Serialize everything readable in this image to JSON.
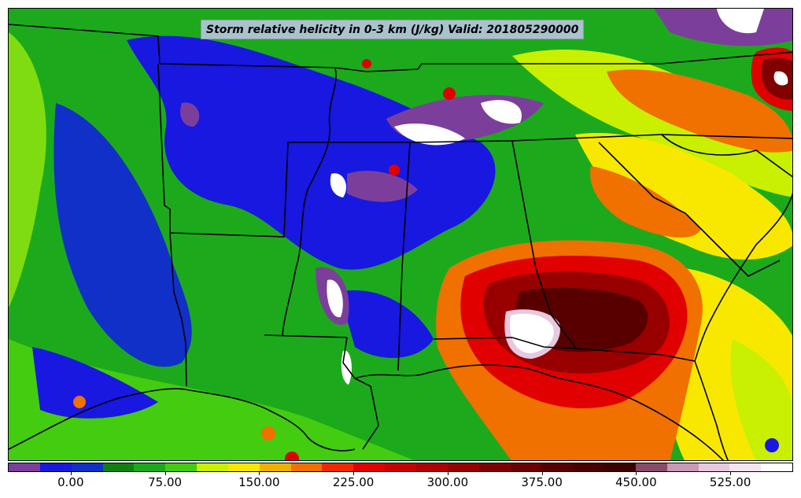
{
  "title": "Storm relative helicity in 0-3 km (J/kg) Valid: 201805290000",
  "colorbar": {
    "colors": [
      "#7b3f9b",
      "#1818e0",
      "#1030c8",
      "#108010",
      "#1caa1c",
      "#44cc10",
      "#c8f000",
      "#f8e800",
      "#f0b000",
      "#f07000",
      "#f02800",
      "#e00000",
      "#c80000",
      "#b00000",
      "#980000",
      "#800000",
      "#6c0000",
      "#580000",
      "#480000",
      "#3c0000",
      "#8a4a6a",
      "#c89ab8",
      "#e8c8e0",
      "#f4e4f0",
      "#ffffff"
    ],
    "tick_labels": [
      "0.00",
      "75.00",
      "150.00",
      "225.00",
      "300.00",
      "375.00",
      "450.00",
      "525.00"
    ]
  },
  "field_colors": {
    "purple": "#7b3f9b",
    "blue": "#1818e0",
    "dark_green": "#108010",
    "green": "#38c010",
    "lime": "#c8f000",
    "yellow": "#f8e800",
    "orange": "#f07000",
    "red": "#e00000",
    "dark_red": "#800000",
    "very_dark": "#3c0000",
    "pink": "#e8c8e0",
    "white": "#ffffff",
    "boundary": "#000000"
  }
}
